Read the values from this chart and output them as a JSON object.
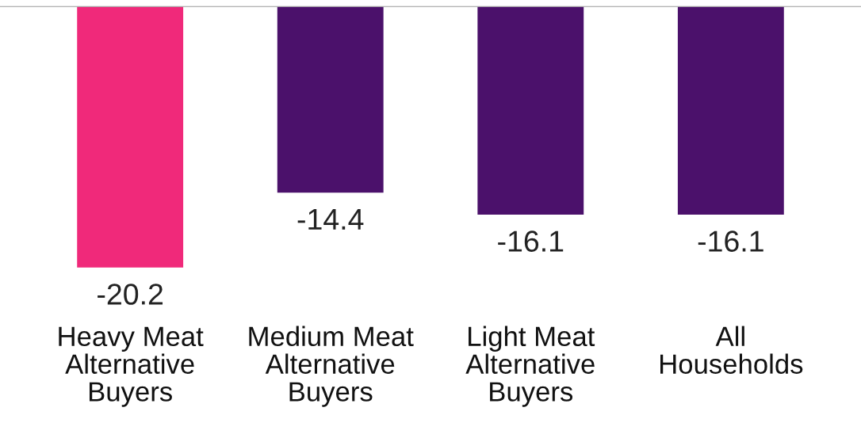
{
  "chart_data": {
    "type": "bar",
    "categories": [
      "Heavy Meat\nAlternative\nBuyers",
      "Medium Meat\nAlternative\nBuyers",
      "Light Meat\nAlternative\nBuyers",
      "All\nHouseholds"
    ],
    "values": [
      -20.2,
      -14.4,
      -16.1,
      -16.1
    ],
    "colors": [
      "#f0297a",
      "#4b116b",
      "#4b116b",
      "#4b116b"
    ],
    "data_labels": true
  }
}
